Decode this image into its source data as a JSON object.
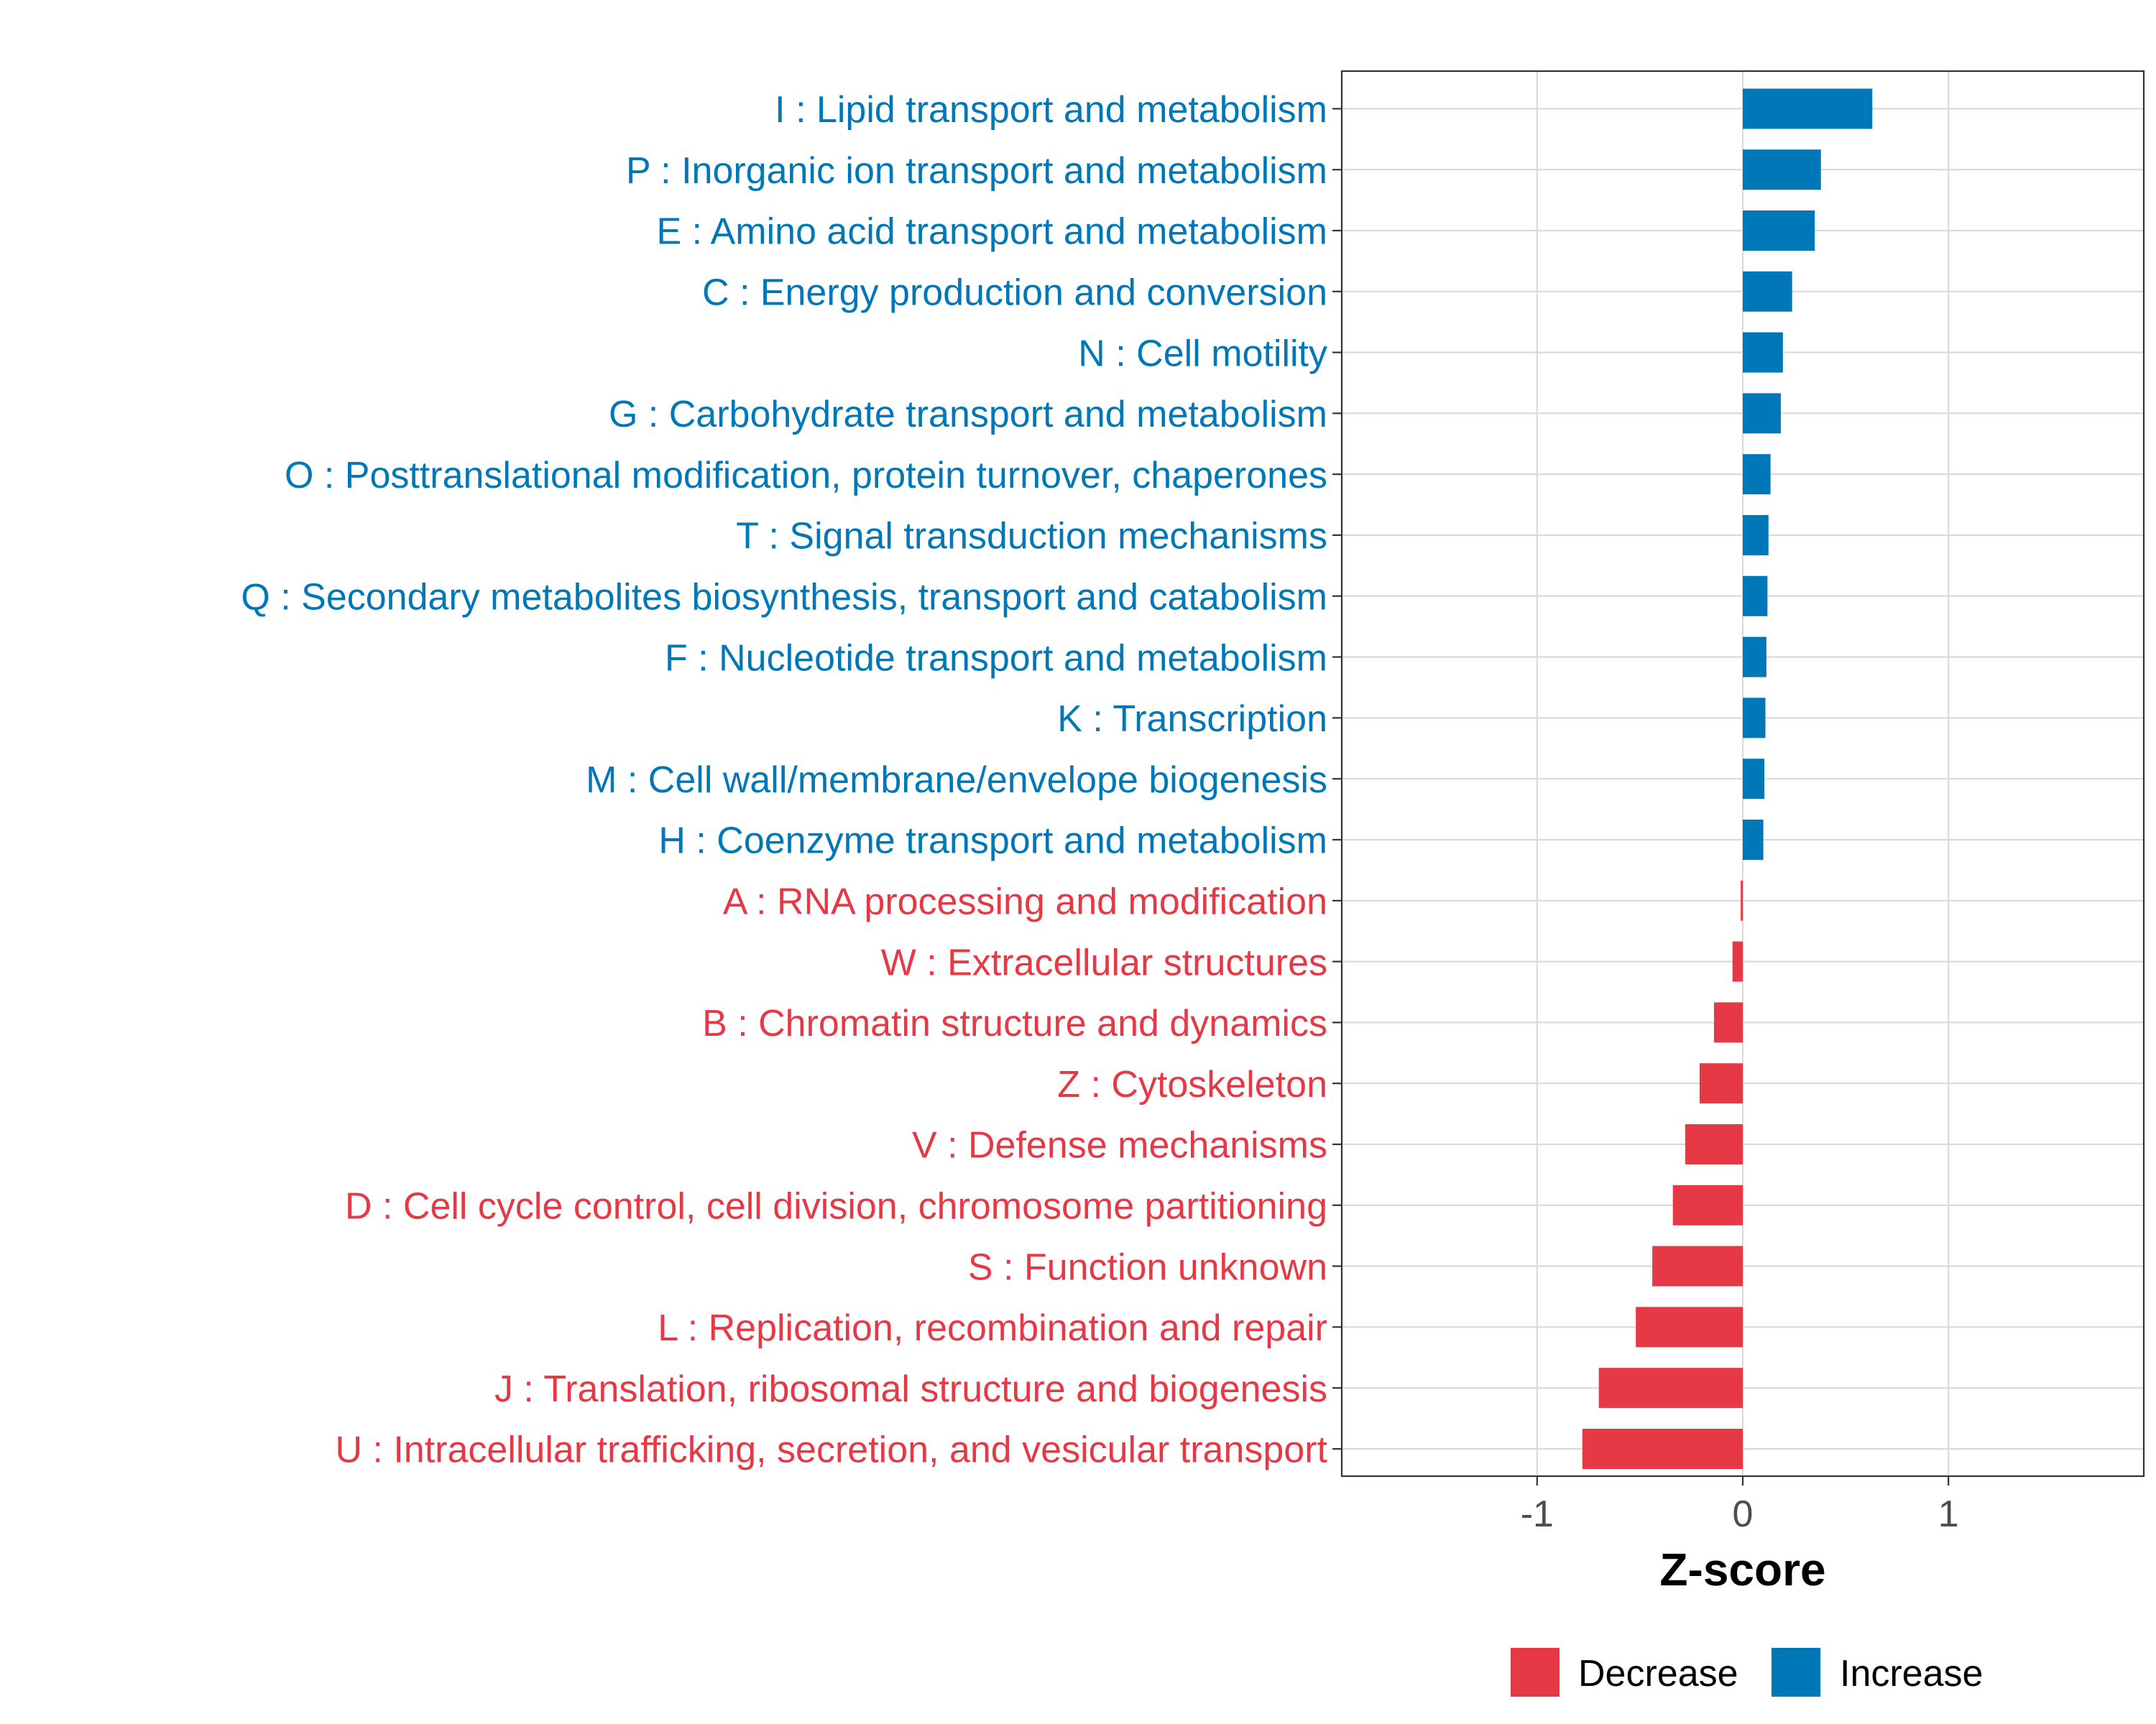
{
  "chart_data": {
    "type": "bar",
    "orientation": "horizontal",
    "title": "",
    "xlabel": "Z-score",
    "ylabel": "",
    "xlim": [
      -1.95,
      1.95
    ],
    "xticks": [
      -1,
      0,
      1
    ],
    "xtick_labels": [
      "-1",
      "0",
      "1"
    ],
    "grid": true,
    "legend_position": "bottom",
    "legend": [
      {
        "name": "Decrease",
        "color": "#E63946"
      },
      {
        "name": "Increase",
        "color": "#0077B6"
      }
    ],
    "categories": [
      "I : Lipid transport and metabolism",
      "P : Inorganic ion transport and metabolism",
      "E : Amino acid transport and metabolism",
      "C : Energy production and conversion",
      "N : Cell motility",
      "G : Carbohydrate transport and metabolism",
      "O : Posttranslational modification, protein turnover, chaperones",
      "T : Signal transduction mechanisms",
      "Q : Secondary metabolites biosynthesis, transport and catabolism",
      "F : Nucleotide transport and metabolism",
      "K : Transcription",
      "M : Cell wall/membrane/envelope biogenesis",
      "H : Coenzyme transport and metabolism",
      "A : RNA processing and modification",
      "W : Extracellular structures",
      "B : Chromatin structure and dynamics",
      "Z : Cytoskeleton",
      "V : Defense mechanisms",
      "D : Cell cycle control, cell division, chromosome partitioning",
      "S : Function unknown",
      "L : Replication, recombination and repair",
      "J : Translation, ribosomal structure and biogenesis",
      "U : Intracellular trafficking, secretion, and vesicular transport"
    ],
    "values": [
      0.63,
      0.38,
      0.35,
      0.24,
      0.195,
      0.185,
      0.135,
      0.125,
      0.12,
      0.115,
      0.11,
      0.105,
      0.1,
      -0.01,
      -0.05,
      -0.14,
      -0.21,
      -0.28,
      -0.34,
      -0.44,
      -0.52,
      -0.7,
      -0.78
    ],
    "directions": [
      "Increase",
      "Increase",
      "Increase",
      "Increase",
      "Increase",
      "Increase",
      "Increase",
      "Increase",
      "Increase",
      "Increase",
      "Increase",
      "Increase",
      "Increase",
      "Decrease",
      "Decrease",
      "Decrease",
      "Decrease",
      "Decrease",
      "Decrease",
      "Decrease",
      "Decrease",
      "Decrease",
      "Decrease"
    ]
  }
}
